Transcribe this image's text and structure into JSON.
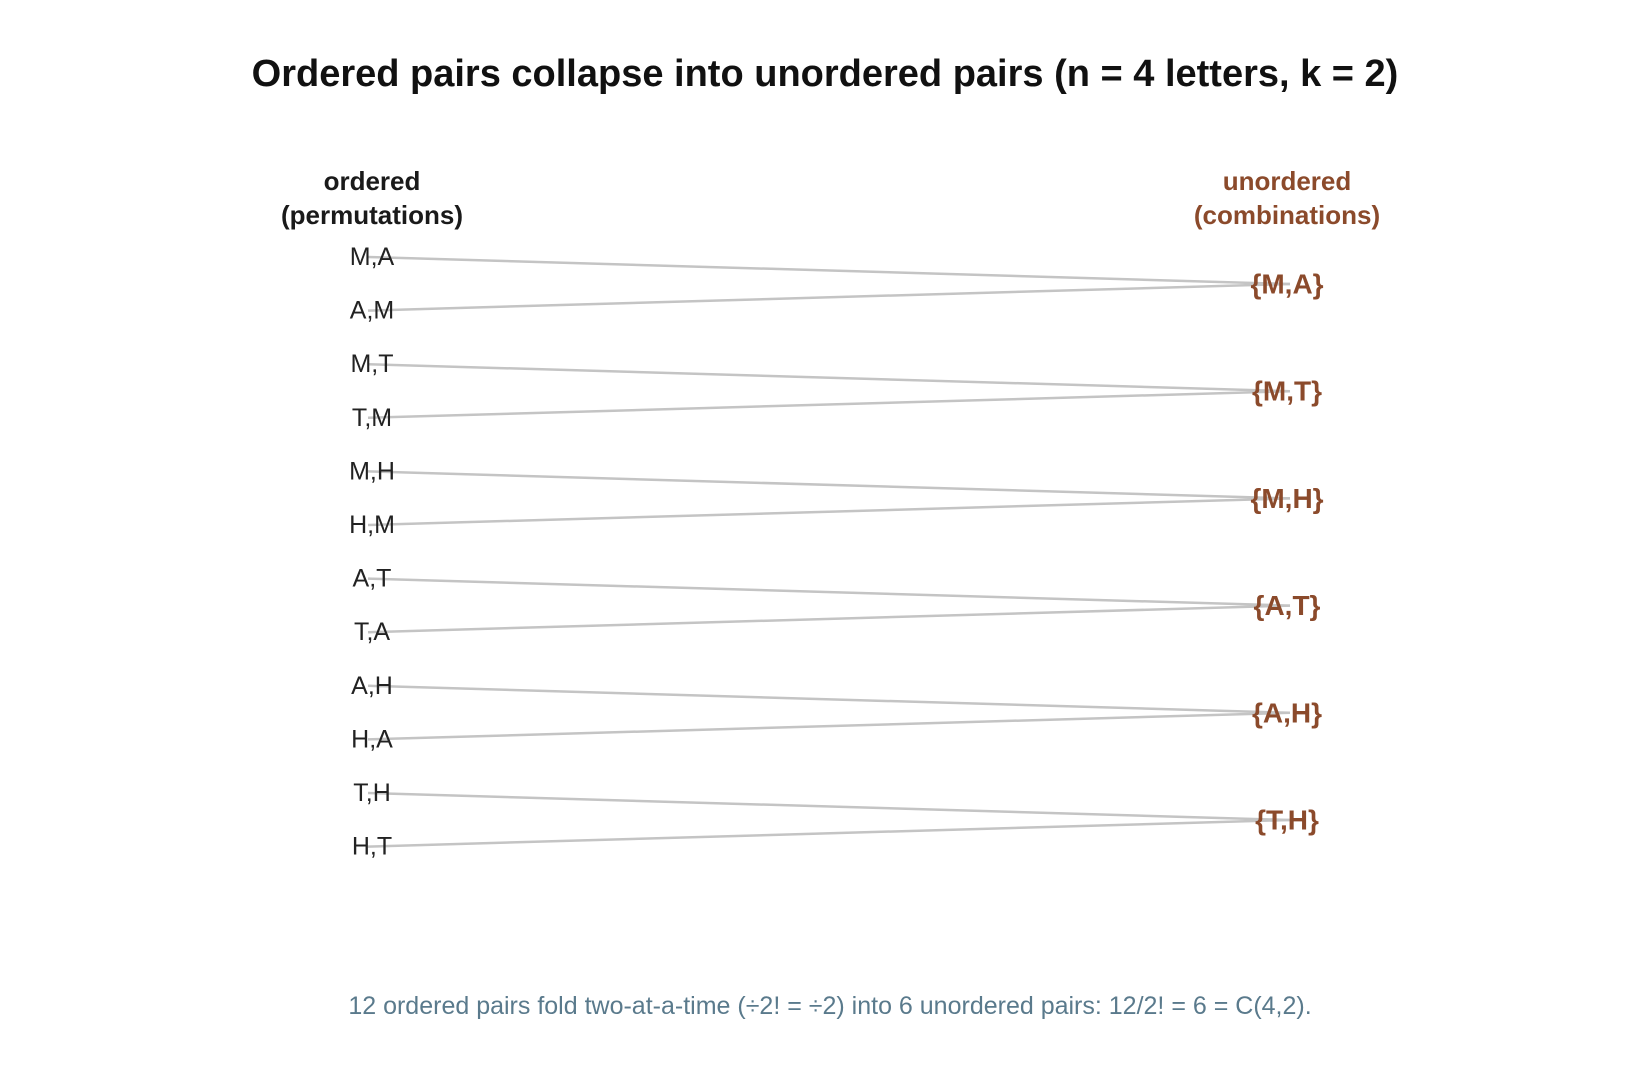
{
  "title": "Ordered pairs collapse into unordered pairs (n = 4 letters, k = 2)",
  "left_header": {
    "line1": "ordered",
    "line2": "(permutations)"
  },
  "right_header": {
    "line1": "unordered",
    "line2": "(combinations)"
  },
  "ordered_pairs": [
    {
      "label": "M,A",
      "target": 0
    },
    {
      "label": "A,M",
      "target": 0
    },
    {
      "label": "M,T",
      "target": 1
    },
    {
      "label": "T,M",
      "target": 1
    },
    {
      "label": "M,H",
      "target": 2
    },
    {
      "label": "H,M",
      "target": 2
    },
    {
      "label": "A,T",
      "target": 3
    },
    {
      "label": "T,A",
      "target": 3
    },
    {
      "label": "A,H",
      "target": 4
    },
    {
      "label": "H,A",
      "target": 4
    },
    {
      "label": "T,H",
      "target": 5
    },
    {
      "label": "H,T",
      "target": 5
    }
  ],
  "unordered_pairs": [
    "{M,A}",
    "{M,T}",
    "{M,H}",
    "{A,T}",
    "{A,H}",
    "{T,H}"
  ],
  "caption": "12 ordered pairs fold two-at-a-time (÷2! = ÷2) into 6 unordered pairs: 12/2! = 6 = C(4,2).",
  "colors": {
    "connector": "#c4c4c4",
    "combination_accent": "#8b4a2b",
    "caption": "#5a7a8c"
  }
}
